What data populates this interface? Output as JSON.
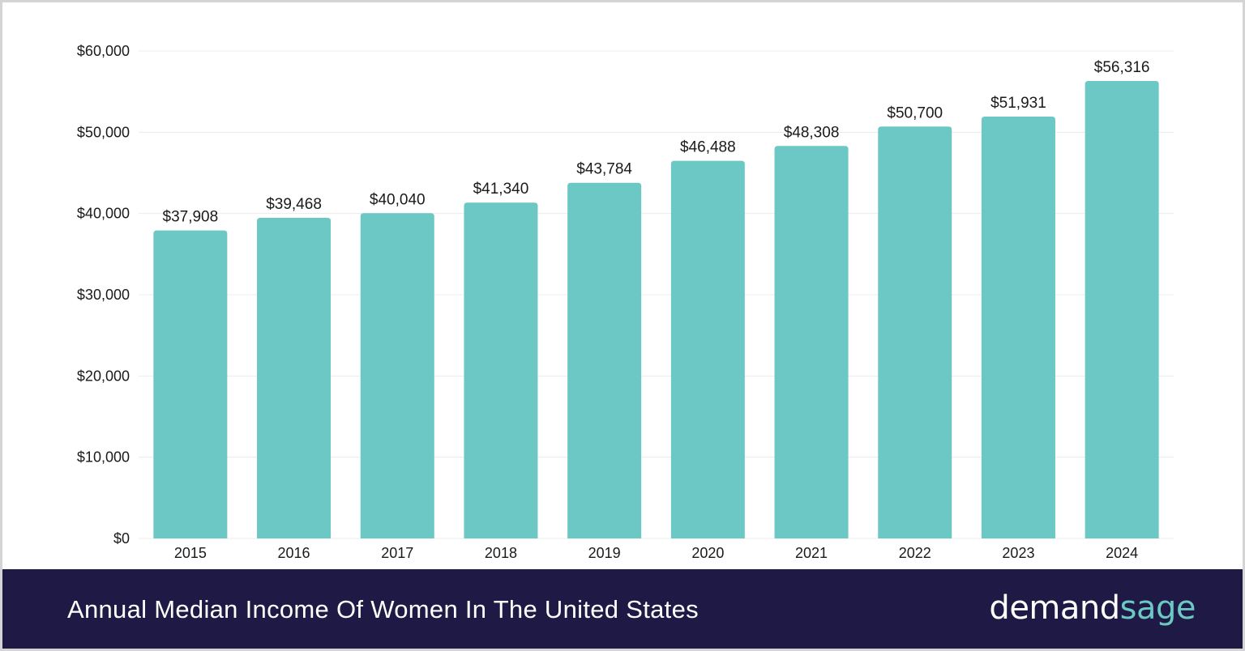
{
  "chart_data": {
    "type": "bar",
    "title": "Annual Median Income Of Women In The United States",
    "xlabel": "",
    "ylabel": "",
    "categories": [
      "2015",
      "2016",
      "2017",
      "2018",
      "2019",
      "2020",
      "2021",
      "2022",
      "2023",
      "2024"
    ],
    "values": [
      37908,
      39468,
      40040,
      41340,
      43784,
      46488,
      48308,
      50700,
      51931,
      56316
    ],
    "value_labels": [
      "$37,908",
      "$39,468",
      "$40,040",
      "$41,340",
      "$43,784",
      "$46,488",
      "$48,308",
      "$50,700",
      "$51,931",
      "$56,316"
    ],
    "ylim": [
      0,
      60000
    ],
    "yticks": [
      0,
      10000,
      20000,
      30000,
      40000,
      50000,
      60000
    ],
    "ytick_labels": [
      "$0",
      "$10,000",
      "$20,000",
      "$30,000",
      "$40,000",
      "$50,000",
      "$60,000"
    ],
    "grid": true,
    "bar_color": "#6cc8c4",
    "grid_color": "#ececec"
  },
  "footer": {
    "title": "Annual Median Income Of Women In The United States",
    "background_color": "#1f1a45"
  },
  "brand": {
    "part_1": "demand",
    "part_2": "sage",
    "color_1": "#ffffff",
    "color_2": "#6cc8c4"
  }
}
